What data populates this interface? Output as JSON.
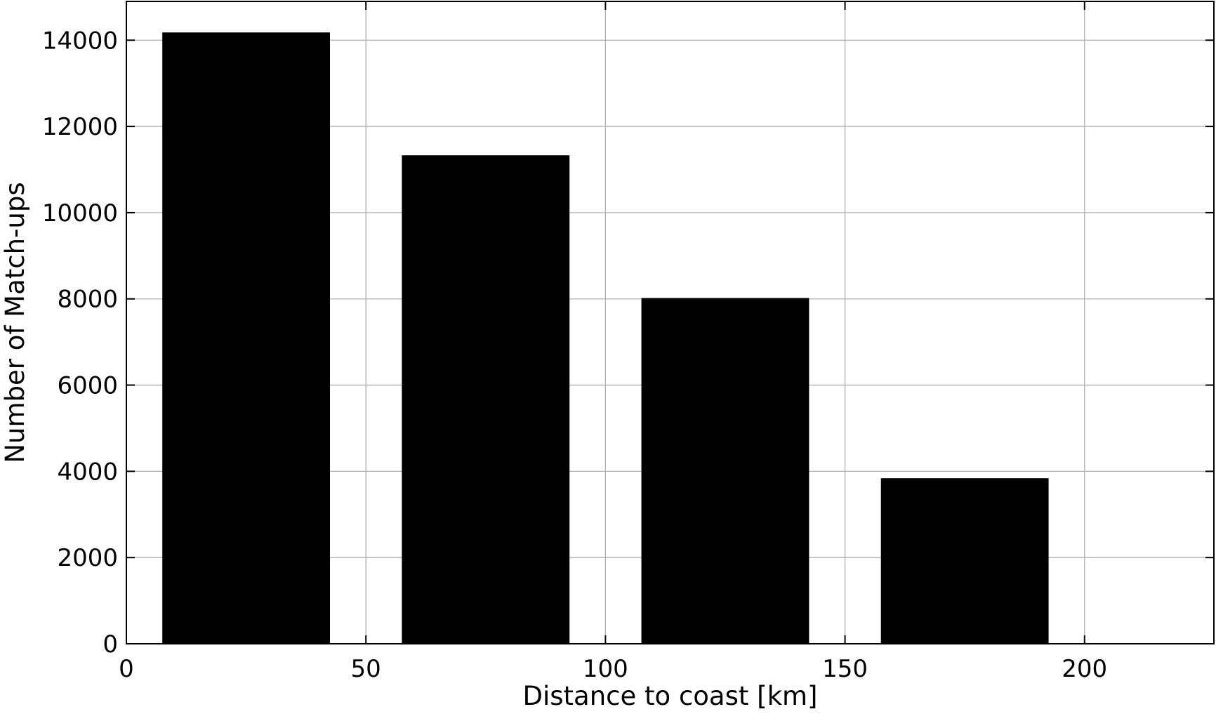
{
  "chart_data": {
    "type": "bar",
    "title": "",
    "xlabel": "Distance to coast [km]",
    "ylabel": "Number of Match-ups",
    "xlim": [
      0,
      227
    ],
    "ylim": [
      0,
      14900
    ],
    "x_ticks": [
      0,
      50,
      100,
      150,
      200
    ],
    "y_ticks": [
      0,
      2000,
      4000,
      6000,
      8000,
      10000,
      12000,
      14000
    ],
    "grid": true,
    "bar_width": 35,
    "categories": [
      25,
      75,
      125,
      175
    ],
    "values": [
      14180,
      11330,
      8020,
      3840
    ],
    "bar_color": "#000000",
    "grid_color": "#b0b0b0"
  }
}
